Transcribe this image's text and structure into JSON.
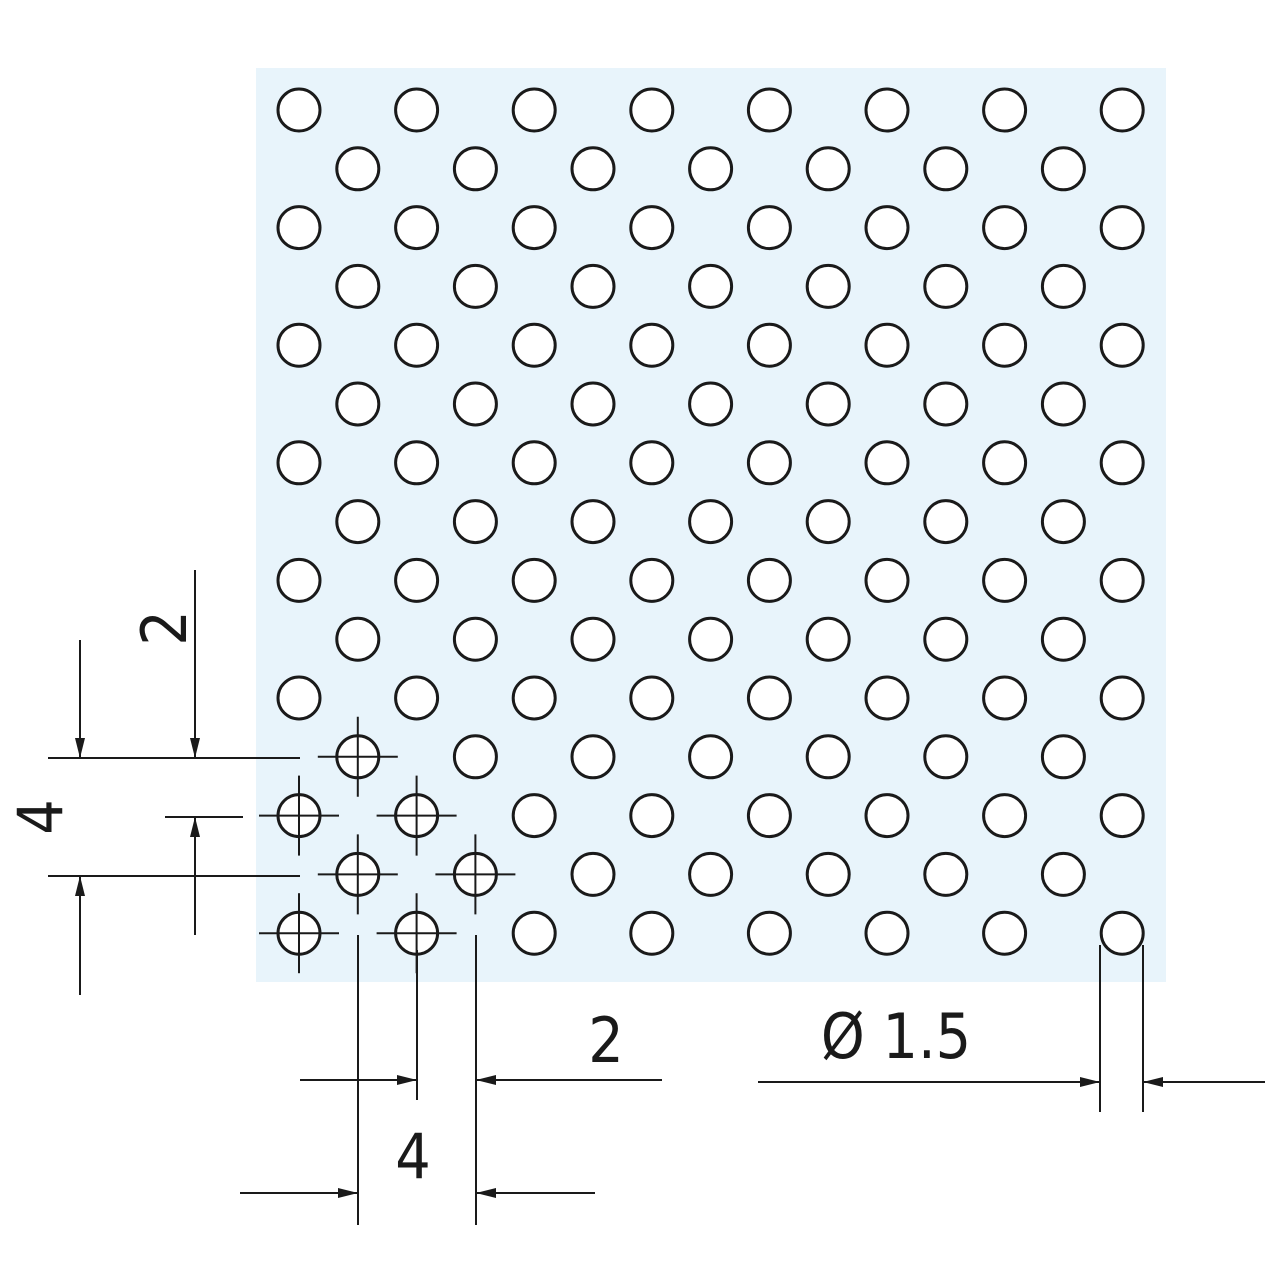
{
  "dimensions": {
    "vertical_pitch": "4",
    "vertical_offset": "2",
    "horizontal_offset": "2",
    "horizontal_pitch": "4",
    "hole_diameter": "Ø 1.5"
  },
  "colors": {
    "sheet": "#e8f4fb",
    "line": "#1a1a1a",
    "hole": "#ffffff"
  },
  "pattern": {
    "layout": "staggered",
    "rows": 15,
    "even_row_holes": 8,
    "odd_row_holes": 7,
    "highlighted_holes": 7
  }
}
